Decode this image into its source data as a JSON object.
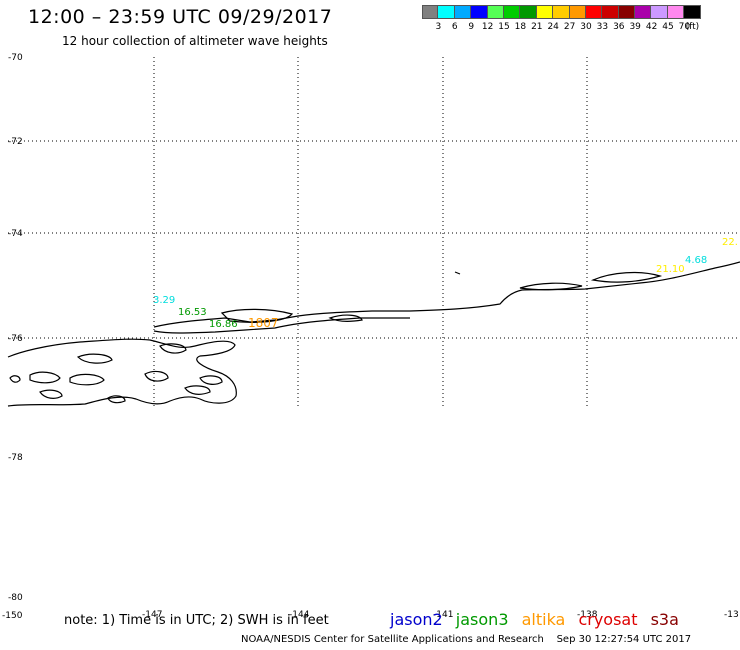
{
  "title": "12:00 – 23:59 UTC 09/29/2017",
  "subtitle": "12 hour collection of altimeter wave heights",
  "scale": {
    "colors": [
      "#808080",
      "#00ffff",
      "#00aaff",
      "#0000ff",
      "#55ff55",
      "#00cc00",
      "#009900",
      "#ffff00",
      "#ffcc00",
      "#ff9900",
      "#ff0000",
      "#cc0000",
      "#880000",
      "#aa00aa",
      "#cc99ff",
      "#ff88ee",
      "#000000"
    ],
    "labels": [
      "3",
      "6",
      "9",
      "12",
      "15",
      "18",
      "21",
      "24",
      "27",
      "30",
      "33",
      "36",
      "39",
      "42",
      "45",
      "70",
      "(ft)"
    ]
  },
  "axes": {
    "lat_labels": [
      "-70",
      "-72",
      "-74",
      "-76",
      "-78",
      "-80"
    ],
    "lon_labels": [
      "-150",
      "-147",
      "-144",
      "-141",
      "-138",
      "-13"
    ]
  },
  "wave_labels": [
    {
      "text": "3.29",
      "color": "#00dddd"
    },
    {
      "text": "16.53",
      "color": "#009900"
    },
    {
      "text": "16.86",
      "color": "#009900"
    },
    {
      "text": "1807",
      "color": "#ff9900"
    },
    {
      "text": "4.68",
      "color": "#00dddd"
    },
    {
      "text": "21.10",
      "color": "#ffee00"
    },
    {
      "text": "22.",
      "color": "#ffee00"
    }
  ],
  "note": "note: 1) Time is in UTC; 2) SWH is in feet",
  "satellites": [
    {
      "name": "jason2",
      "color": "#0000cc"
    },
    {
      "name": "jason3",
      "color": "#009900"
    },
    {
      "name": "altika",
      "color": "#ff9900"
    },
    {
      "name": "cryosat",
      "color": "#dd0000"
    },
    {
      "name": "s3a",
      "color": "#880000"
    }
  ],
  "credit": "NOAA/NESDIS Center for Satellite Applications and Research",
  "timestamp": "Sep 30 12:27:54 UTC 2017"
}
